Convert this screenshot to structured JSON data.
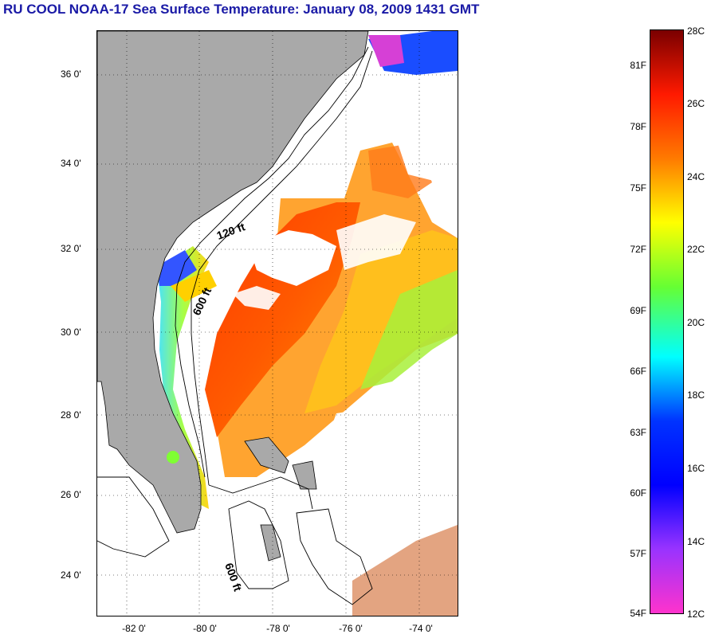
{
  "title": "RU COOL  NOAA-17  Sea Surface Temperature:  January 08, 2009 1431 GMT",
  "map": {
    "latitude_labels": [
      "36 0'",
      "34 0'",
      "32 0'",
      "30 0'",
      "28 0'",
      "26 0'",
      "24 0'"
    ],
    "longitude_labels": [
      "-82 0'",
      "-80 0'",
      "-78 0'",
      "-76 0'",
      "-74 0'"
    ],
    "contour_labels": [
      "120 ft",
      "600 ft",
      "600 ft"
    ],
    "land_color": "#a9a9a9",
    "cloud_color": "#ffffff"
  },
  "colorbar": {
    "fahrenheit_labels": [
      "81F",
      "78F",
      "75F",
      "72F",
      "69F",
      "66F",
      "63F",
      "60F",
      "57F",
      "54F"
    ],
    "celsius_labels": [
      "28C",
      "26C",
      "24C",
      "22C",
      "20C",
      "18C",
      "16C",
      "14C",
      "12C"
    ],
    "scale_colors": [
      "#7a0000",
      "#ff1a00",
      "#ff7a00",
      "#ffff00",
      "#66ff33",
      "#00ffff",
      "#0033ff",
      "#0000ff",
      "#9933ff",
      "#ff33cc"
    ]
  }
}
